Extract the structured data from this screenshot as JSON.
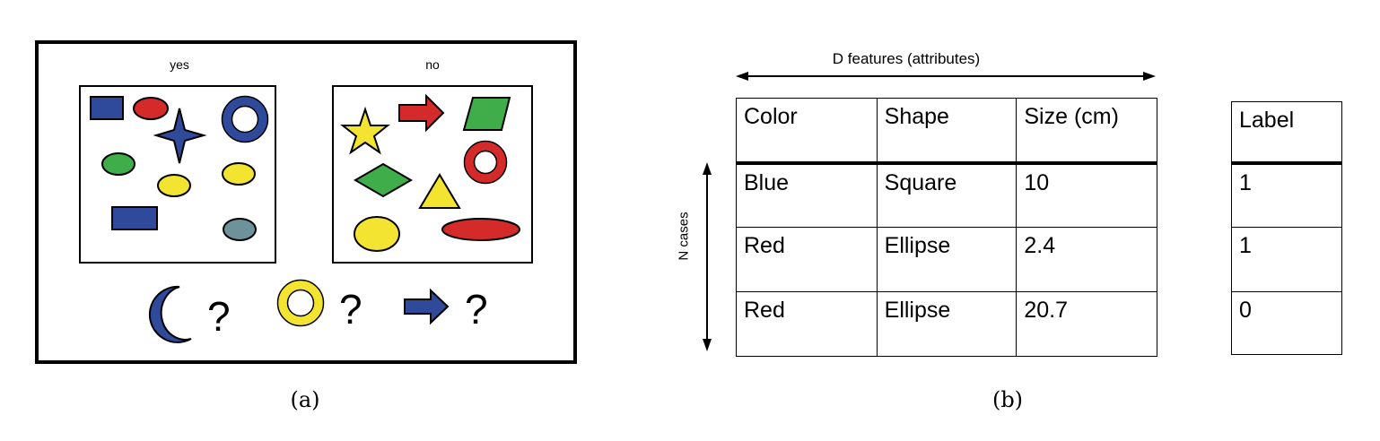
{
  "panel_a": {
    "caption": "(a)",
    "yes_label": "yes",
    "no_label": "no",
    "query_marks": [
      "?",
      "?",
      "?"
    ]
  },
  "panel_b": {
    "caption": "(b)",
    "features_label": "D features (attributes)",
    "cases_label": "N cases",
    "columns": [
      "Color",
      "Shape",
      "Size (cm)"
    ],
    "rows": [
      [
        "Blue",
        "Square",
        "10"
      ],
      [
        "Red",
        "Ellipse",
        "2.4"
      ],
      [
        "Red",
        "Ellipse",
        "20.7"
      ]
    ],
    "label_header": "Label",
    "labels": [
      "1",
      "1",
      "0"
    ]
  },
  "colors": {
    "blue": "#2f4a9a",
    "red": "#d42a2a",
    "green": "#3fae4a",
    "yellow": "#f3e432",
    "gray": "#6e929a",
    "line": "#000000"
  }
}
